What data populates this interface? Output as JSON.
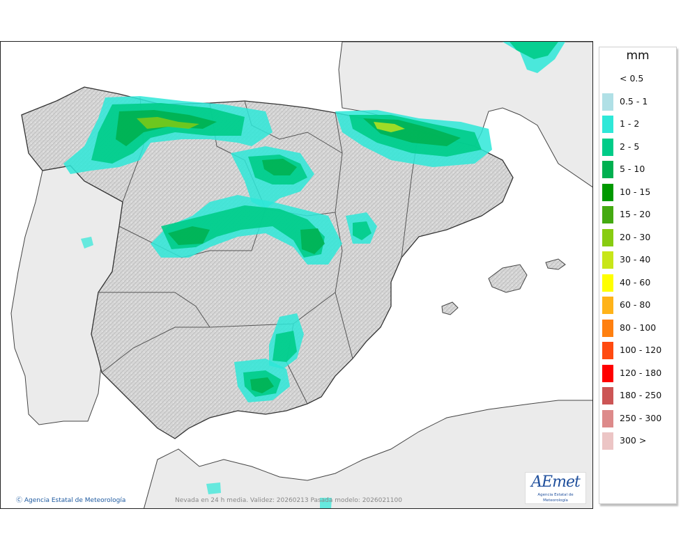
{
  "map": {
    "credit_text": "Agencia Estatal de Meteorología",
    "validity_text": "Nevada en 24 h media. Validez: 20260213 Pasada modelo: 2026021100",
    "logo_text": "AEmet",
    "logo_subtext": "Agencia Estatal de Meteorología"
  },
  "legend": {
    "unit": "mm",
    "items": [
      {
        "label": "< 0.5",
        "color": ""
      },
      {
        "label": "0.5 - 1",
        "color": "#b0e0e6"
      },
      {
        "label": "1 - 2",
        "color": "#2ee8d8"
      },
      {
        "label": "2 - 5",
        "color": "#00cc88"
      },
      {
        "label": "5 - 10",
        "color": "#00b050"
      },
      {
        "label": "10 - 15",
        "color": "#009900"
      },
      {
        "label": "15 - 20",
        "color": "#44aa11"
      },
      {
        "label": "20 - 30",
        "color": "#88cc11"
      },
      {
        "label": "30 - 40",
        "color": "#c8e619"
      },
      {
        "label": "40 - 60",
        "color": "#ffff00"
      },
      {
        "label": "60 - 80",
        "color": "#ffb319"
      },
      {
        "label": "80 - 100",
        "color": "#ff8010"
      },
      {
        "label": "100 - 120",
        "color": "#ff4a10"
      },
      {
        "label": "120 - 180",
        "color": "#ff0000"
      },
      {
        "label": "180 - 250",
        "color": "#cc5555"
      },
      {
        "label": "250 - 300",
        "color": "#dd8a8a"
      },
      {
        "label": "300 >",
        "color": "#ecc5c5"
      }
    ]
  }
}
